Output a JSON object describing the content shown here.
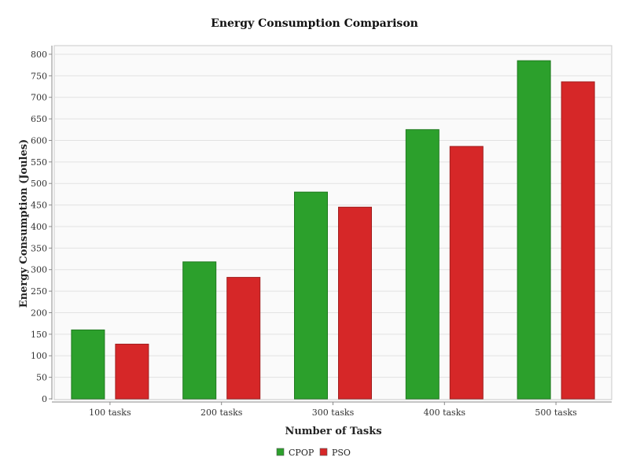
{
  "chart_data": {
    "type": "bar",
    "title": "Energy Consumption Comparison",
    "xlabel": "Number of Tasks",
    "ylabel": "Energy Consumption (Joules)",
    "categories": [
      "100 tasks",
      "200 tasks",
      "300 tasks",
      "400 tasks",
      "500 tasks"
    ],
    "series": [
      {
        "name": "CPOP",
        "color": "#2ca02c",
        "values": [
          160,
          318,
          480,
          625,
          785
        ]
      },
      {
        "name": "PSO",
        "color": "#d62728",
        "values": [
          127,
          282,
          445,
          586,
          736
        ]
      }
    ],
    "ylim": [
      0,
      820
    ],
    "yticks": [
      0,
      50,
      100,
      150,
      200,
      250,
      300,
      350,
      400,
      450,
      500,
      550,
      600,
      650,
      700,
      750,
      800
    ],
    "grid": true,
    "legend_position": "bottom"
  }
}
